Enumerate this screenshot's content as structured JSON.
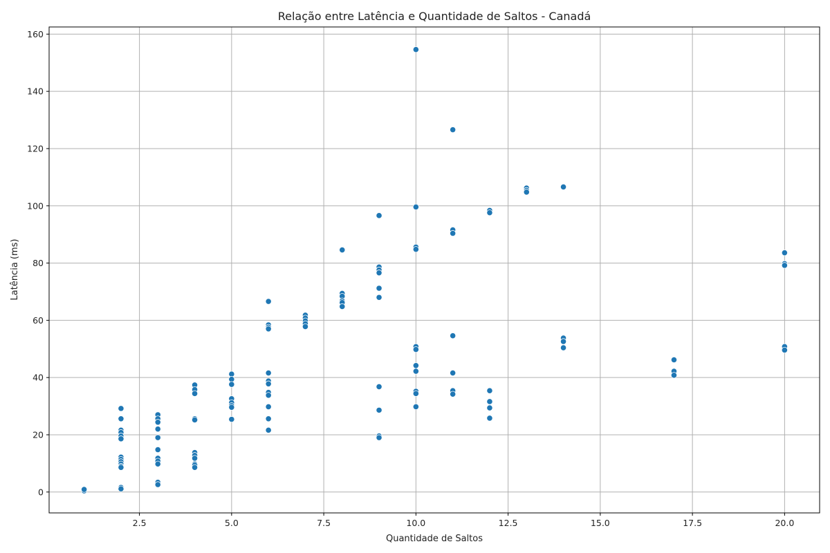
{
  "chart_data": {
    "type": "scatter",
    "title": "Relação entre Latência e Quantidade de Saltos - Canadá",
    "xlabel": "Quantidade de Saltos",
    "ylabel": "Latência (ms)",
    "xlim": [
      0.05,
      20.95
    ],
    "ylim": [
      -7.3,
      162.5
    ],
    "x_ticks": [
      2.5,
      5.0,
      7.5,
      10.0,
      12.5,
      15.0,
      17.5,
      20.0
    ],
    "x_tick_labels": [
      "2.5",
      "5.0",
      "7.5",
      "10.0",
      "12.5",
      "15.0",
      "17.5",
      "20.0"
    ],
    "y_ticks": [
      0,
      20,
      40,
      60,
      80,
      100,
      120,
      140,
      160
    ],
    "y_tick_labels": [
      "0",
      "20",
      "40",
      "60",
      "80",
      "100",
      "120",
      "140",
      "160"
    ],
    "grid": true,
    "colors": {
      "points": "#1f77b4",
      "grid": "#b0b0b0",
      "axes": "#000000"
    },
    "points": [
      {
        "x": 1,
        "y": 0.4
      },
      {
        "x": 1,
        "y": 0.9
      },
      {
        "x": 2,
        "y": 29.2
      },
      {
        "x": 2,
        "y": 25.6
      },
      {
        "x": 2,
        "y": 21.6
      },
      {
        "x": 2,
        "y": 20.8
      },
      {
        "x": 2,
        "y": 19.6
      },
      {
        "x": 2,
        "y": 18.6
      },
      {
        "x": 2,
        "y": 12.2
      },
      {
        "x": 2,
        "y": 11.4
      },
      {
        "x": 2,
        "y": 10.6
      },
      {
        "x": 2,
        "y": 9.8
      },
      {
        "x": 2,
        "y": 9.0
      },
      {
        "x": 2,
        "y": 8.6
      },
      {
        "x": 2,
        "y": 1.6
      },
      {
        "x": 2,
        "y": 1.1
      },
      {
        "x": 3,
        "y": 27.0
      },
      {
        "x": 3,
        "y": 25.6
      },
      {
        "x": 3,
        "y": 24.4
      },
      {
        "x": 3,
        "y": 22.0
      },
      {
        "x": 3,
        "y": 19.0
      },
      {
        "x": 3,
        "y": 14.8
      },
      {
        "x": 3,
        "y": 11.8
      },
      {
        "x": 3,
        "y": 10.8
      },
      {
        "x": 3,
        "y": 9.8
      },
      {
        "x": 3,
        "y": 3.4
      },
      {
        "x": 3,
        "y": 2.6
      },
      {
        "x": 4,
        "y": 37.4
      },
      {
        "x": 4,
        "y": 35.8
      },
      {
        "x": 4,
        "y": 34.4
      },
      {
        "x": 4,
        "y": 25.6
      },
      {
        "x": 4,
        "y": 25.2
      },
      {
        "x": 4,
        "y": 13.8
      },
      {
        "x": 4,
        "y": 12.8
      },
      {
        "x": 4,
        "y": 11.8
      },
      {
        "x": 4,
        "y": 9.8
      },
      {
        "x": 4,
        "y": 9.4
      },
      {
        "x": 4,
        "y": 8.6
      },
      {
        "x": 5,
        "y": 41.2
      },
      {
        "x": 5,
        "y": 39.4
      },
      {
        "x": 5,
        "y": 37.6
      },
      {
        "x": 5,
        "y": 32.6
      },
      {
        "x": 5,
        "y": 31.2
      },
      {
        "x": 5,
        "y": 30.2
      },
      {
        "x": 5,
        "y": 29.6
      },
      {
        "x": 5,
        "y": 25.4
      },
      {
        "x": 6,
        "y": 66.6
      },
      {
        "x": 6,
        "y": 58.4
      },
      {
        "x": 6,
        "y": 57.6
      },
      {
        "x": 6,
        "y": 57.0
      },
      {
        "x": 6,
        "y": 41.6
      },
      {
        "x": 6,
        "y": 38.8
      },
      {
        "x": 6,
        "y": 37.8
      },
      {
        "x": 6,
        "y": 34.8
      },
      {
        "x": 6,
        "y": 33.8
      },
      {
        "x": 6,
        "y": 29.8
      },
      {
        "x": 6,
        "y": 25.6
      },
      {
        "x": 6,
        "y": 21.6
      },
      {
        "x": 7,
        "y": 61.8
      },
      {
        "x": 7,
        "y": 60.8
      },
      {
        "x": 7,
        "y": 59.8
      },
      {
        "x": 7,
        "y": 58.8
      },
      {
        "x": 7,
        "y": 57.8
      },
      {
        "x": 8,
        "y": 84.6
      },
      {
        "x": 8,
        "y": 69.4
      },
      {
        "x": 8,
        "y": 68.4
      },
      {
        "x": 8,
        "y": 66.8
      },
      {
        "x": 8,
        "y": 66.2
      },
      {
        "x": 8,
        "y": 64.8
      },
      {
        "x": 9,
        "y": 96.6
      },
      {
        "x": 9,
        "y": 78.6
      },
      {
        "x": 9,
        "y": 77.6
      },
      {
        "x": 9,
        "y": 76.6
      },
      {
        "x": 9,
        "y": 71.2
      },
      {
        "x": 9,
        "y": 68.0
      },
      {
        "x": 9,
        "y": 36.8
      },
      {
        "x": 9,
        "y": 28.6
      },
      {
        "x": 9,
        "y": 19.6
      },
      {
        "x": 9,
        "y": 19.0
      },
      {
        "x": 10,
        "y": 154.6
      },
      {
        "x": 10,
        "y": 99.6
      },
      {
        "x": 10,
        "y": 85.6
      },
      {
        "x": 10,
        "y": 84.8
      },
      {
        "x": 10,
        "y": 50.8
      },
      {
        "x": 10,
        "y": 49.8
      },
      {
        "x": 10,
        "y": 44.2
      },
      {
        "x": 10,
        "y": 42.2
      },
      {
        "x": 10,
        "y": 35.2
      },
      {
        "x": 10,
        "y": 34.4
      },
      {
        "x": 10,
        "y": 29.8
      },
      {
        "x": 11,
        "y": 126.6
      },
      {
        "x": 11,
        "y": 91.6
      },
      {
        "x": 11,
        "y": 90.4
      },
      {
        "x": 11,
        "y": 54.6
      },
      {
        "x": 11,
        "y": 41.6
      },
      {
        "x": 11,
        "y": 35.4
      },
      {
        "x": 11,
        "y": 34.2
      },
      {
        "x": 12,
        "y": 98.4
      },
      {
        "x": 12,
        "y": 97.6
      },
      {
        "x": 12,
        "y": 35.4
      },
      {
        "x": 12,
        "y": 31.6
      },
      {
        "x": 12,
        "y": 29.4
      },
      {
        "x": 12,
        "y": 25.8
      },
      {
        "x": 13,
        "y": 106.2
      },
      {
        "x": 13,
        "y": 105.4
      },
      {
        "x": 13,
        "y": 104.8
      },
      {
        "x": 14,
        "y": 106.6
      },
      {
        "x": 14,
        "y": 53.8
      },
      {
        "x": 14,
        "y": 52.6
      },
      {
        "x": 14,
        "y": 50.4
      },
      {
        "x": 17,
        "y": 46.2
      },
      {
        "x": 17,
        "y": 42.2
      },
      {
        "x": 17,
        "y": 40.8
      },
      {
        "x": 20,
        "y": 83.6
      },
      {
        "x": 20,
        "y": 79.8
      },
      {
        "x": 20,
        "y": 79.2
      },
      {
        "x": 20,
        "y": 50.8
      },
      {
        "x": 20,
        "y": 49.6
      }
    ]
  }
}
